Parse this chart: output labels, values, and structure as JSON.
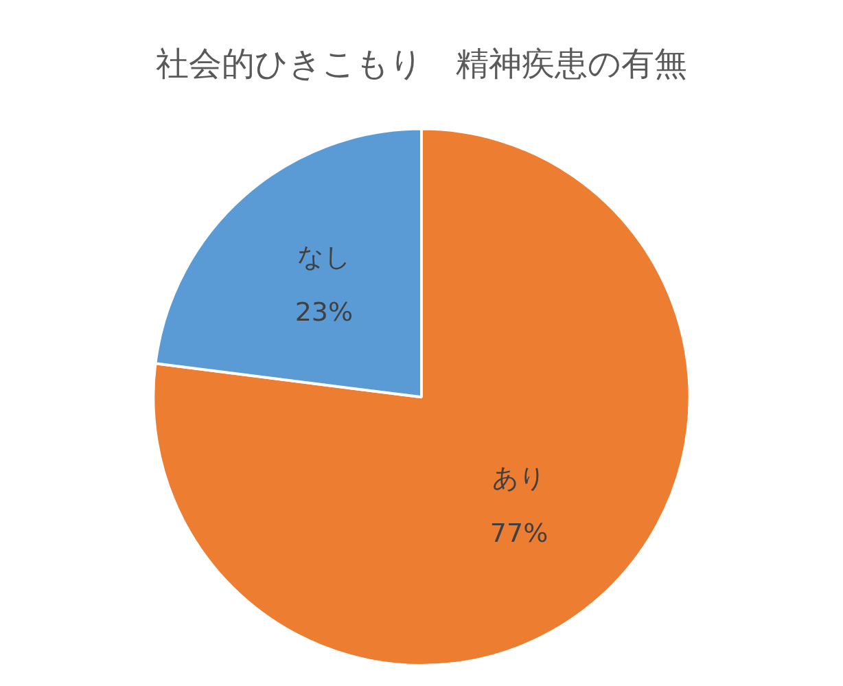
{
  "chart_data": {
    "type": "pie",
    "title": "社会的ひきこもり　精神疾患の有無",
    "categories": [
      "あり",
      "なし"
    ],
    "values": [
      77,
      23
    ],
    "colors": [
      "#ed7d31",
      "#5b9bd5"
    ],
    "value_labels": [
      "77%",
      "23%"
    ],
    "legend": false
  }
}
